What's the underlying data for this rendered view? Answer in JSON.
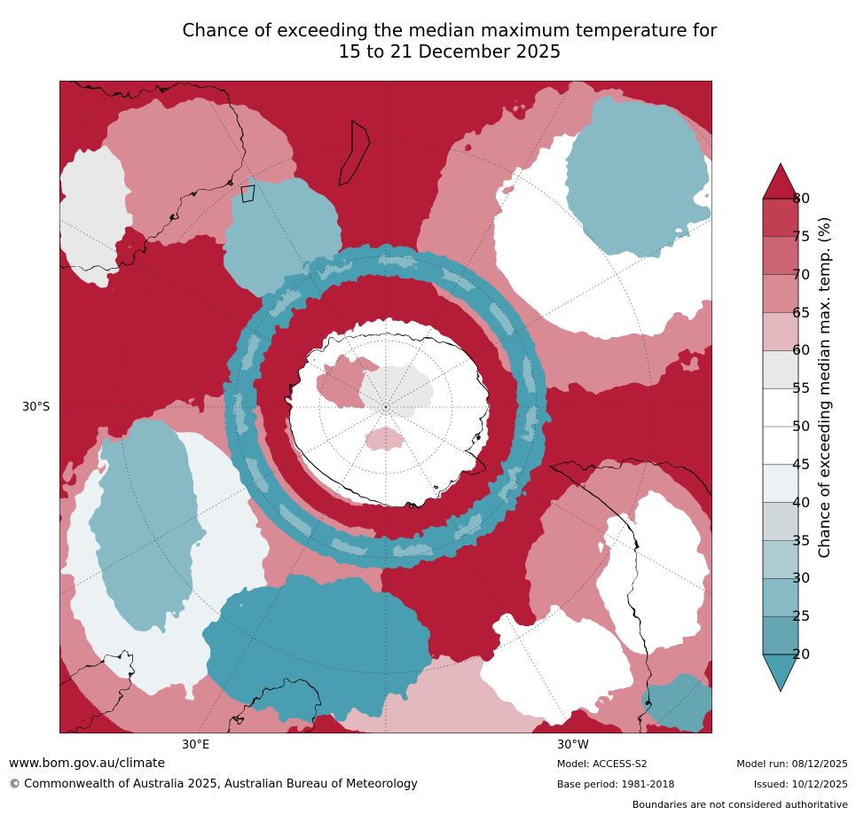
{
  "title": {
    "line1": "Chance of exceeding the median maximum temperature for",
    "line2": "15 to 21 December 2025"
  },
  "axes": {
    "lat_label": "30°S",
    "lon_label_east": "30°E",
    "lon_label_west": "30°W"
  },
  "colorbar": {
    "title": "Chance of exceeding median max. temp. (%)",
    "ticks": [
      "80",
      "75",
      "70",
      "65",
      "60",
      "55",
      "50",
      "45",
      "40",
      "35",
      "30",
      "25",
      "20"
    ],
    "band_colors": [
      "#c23f52",
      "#cd6474",
      "#d88a95",
      "#e3b9bf",
      "#e8e8e8",
      "#ffffff",
      "#ffffff",
      "#ecf1f4",
      "#d0d8dc",
      "#aecbd2",
      "#88bac5",
      "#66a6b3"
    ],
    "over_color": "#b51c37",
    "under_color": "#4a9fb1"
  },
  "footer": {
    "website": "www.bom.gov.au/climate",
    "copyright": "© Commonwealth of Australia 2025, Australian Bureau of Meteorology",
    "model": "Model: ACCESS-S2",
    "base_period": "Base period: 1981-2018",
    "model_run": "Model run: 08/12/2025",
    "issued": "Issued: 10/12/2025",
    "disclaimer": "Boundaries are not considered authoritative"
  },
  "colors": {
    "hot": "#b51c37",
    "warm": "#d88a95",
    "neutral": "#ffffff",
    "cool_light": "#aecbd2",
    "cool": "#4a9fb1",
    "coastline": "#000000"
  }
}
